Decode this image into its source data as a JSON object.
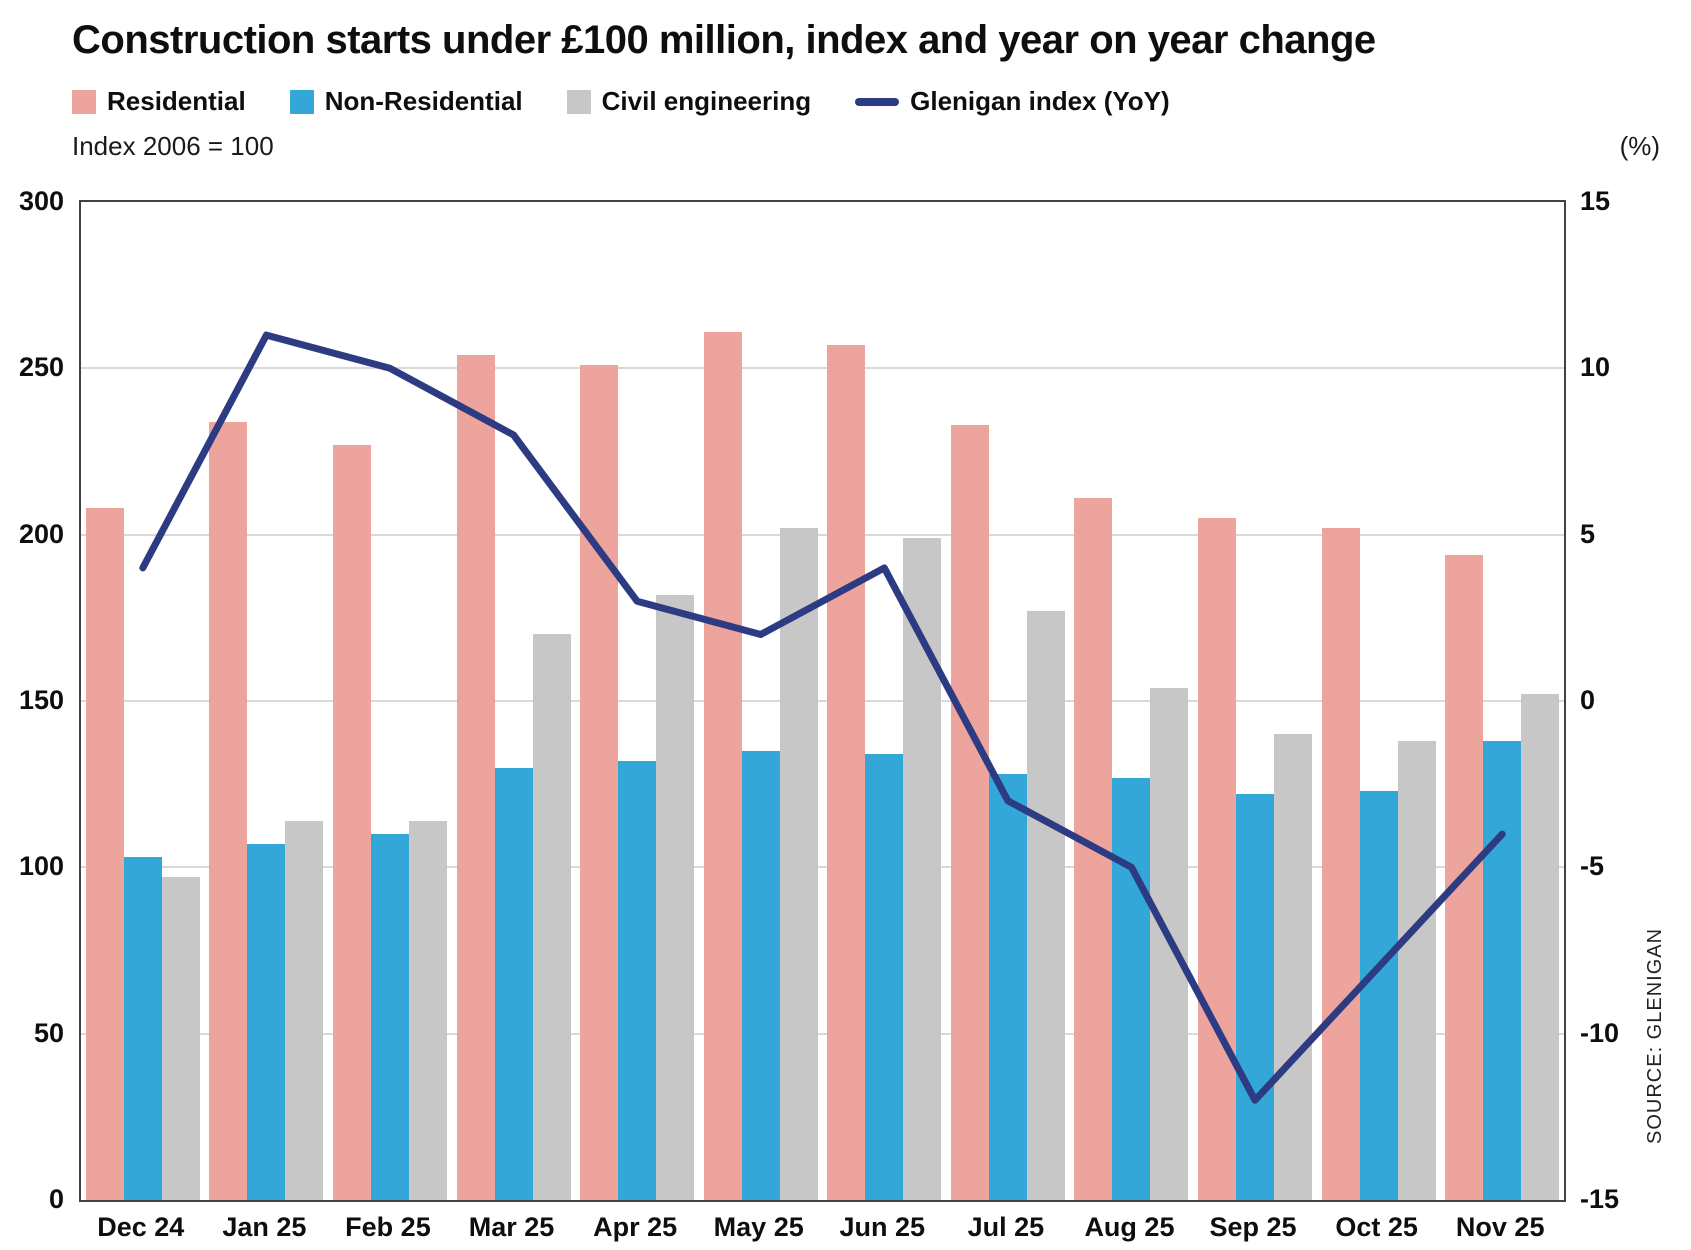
{
  "title": "Construction starts under £100 million, index and year on year change",
  "left_axis_note": "Index 2006 = 100",
  "right_axis_note": "(%)",
  "source": "SOURCE: GLENIGAN",
  "colors": {
    "residential": "#eda49d",
    "non_residential": "#33a8d8",
    "civil": "#c7c7c7",
    "glenigan_line": "#2c3b82",
    "gridline": "#d9d9d9",
    "plot_border": "#424242"
  },
  "legend": [
    {
      "label": "Residential",
      "color": "#eda49d",
      "type": "square"
    },
    {
      "label": "Non-Residential",
      "color": "#33a8d8",
      "type": "square"
    },
    {
      "label": "Civil engineering",
      "color": "#c7c7c7",
      "type": "square"
    },
    {
      "label": "Glenigan index (YoY)",
      "color": "#2c3b82",
      "type": "line"
    }
  ],
  "chart_data": {
    "type": "bar+line",
    "title": "Construction starts under £100 million, index and year on year change",
    "categories": [
      "Dec 24",
      "Jan 25",
      "Feb 25",
      "Mar 25",
      "Apr 25",
      "May 25",
      "Jun 25",
      "Jul 25",
      "Aug 25",
      "Sep 25",
      "Oct 25",
      "Nov 25"
    ],
    "series": [
      {
        "name": "Residential",
        "type": "bar",
        "axis": "left",
        "color": "#eda49d",
        "values": [
          208,
          234,
          227,
          254,
          251,
          261,
          257,
          233,
          211,
          205,
          202,
          194
        ]
      },
      {
        "name": "Non-Residential",
        "type": "bar",
        "axis": "left",
        "color": "#33a8d8",
        "values": [
          103,
          107,
          110,
          130,
          132,
          135,
          134,
          128,
          127,
          122,
          123,
          138
        ]
      },
      {
        "name": "Civil engineering",
        "type": "bar",
        "axis": "left",
        "color": "#c7c7c7",
        "values": [
          97,
          114,
          114,
          170,
          182,
          202,
          199,
          177,
          154,
          140,
          138,
          152
        ]
      },
      {
        "name": "Glenigan index (YoY)",
        "type": "line",
        "axis": "right",
        "color": "#2c3b82",
        "values": [
          4,
          11,
          10,
          8,
          3,
          2,
          4,
          -3,
          -5,
          -12,
          -8,
          -4
        ]
      }
    ],
    "left_axis": {
      "label": "Index 2006 = 100",
      "min": 0,
      "max": 300,
      "ticks": [
        300,
        250,
        200,
        150,
        100,
        50,
        0
      ]
    },
    "right_axis": {
      "label": "(%)",
      "min": -15,
      "max": 15,
      "ticks": [
        15,
        10,
        5,
        0,
        -5,
        -10,
        -15
      ]
    },
    "grid": true,
    "legend_position": "top",
    "source": "SOURCE: GLENIGAN"
  }
}
